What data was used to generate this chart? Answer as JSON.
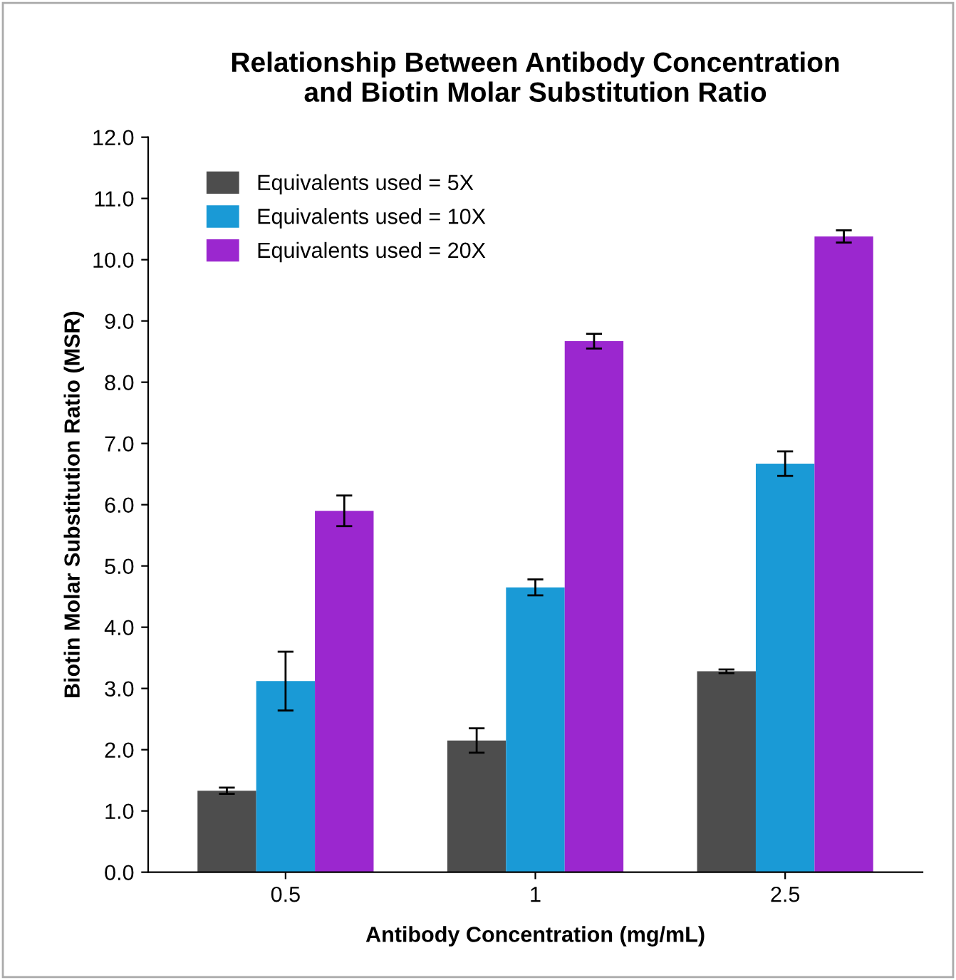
{
  "chart_data": {
    "type": "bar",
    "title": "Relationship Between Antibody Concentration\nand Biotin Molar Substitution Ratio",
    "xlabel": "Antibody Concentration (mg/mL)",
    "ylabel": "Biotin Molar Substitution Ratio (MSR)",
    "categories": [
      "0.5",
      "1",
      "2.5"
    ],
    "series": [
      {
        "name": "Equivalents used = 5X",
        "color": "#4d4d4d",
        "values": [
          1.33,
          2.15,
          3.28
        ],
        "errors": [
          0.05,
          0.2,
          0.03
        ]
      },
      {
        "name": "Equivalents used = 10X",
        "color": "#1a9ad6",
        "values": [
          3.12,
          4.65,
          6.67
        ],
        "errors": [
          0.48,
          0.13,
          0.2
        ]
      },
      {
        "name": "Equivalents used = 20X",
        "color": "#9b27cf",
        "values": [
          5.9,
          8.67,
          10.38
        ],
        "errors": [
          0.25,
          0.12,
          0.1
        ]
      }
    ],
    "ylim": [
      0,
      12
    ],
    "yticks": [
      {
        "value": 0,
        "label": "0.0"
      },
      {
        "value": 1,
        "label": "1.0"
      },
      {
        "value": 2,
        "label": "2.0"
      },
      {
        "value": 3,
        "label": "3.0"
      },
      {
        "value": 4,
        "label": "4.0"
      },
      {
        "value": 5,
        "label": "5.0"
      },
      {
        "value": 6,
        "label": "6.0"
      },
      {
        "value": 7,
        "label": "7.0"
      },
      {
        "value": 8,
        "label": "8.0"
      },
      {
        "value": 9,
        "label": "9.0"
      },
      {
        "value": 10,
        "label": "10.0"
      },
      {
        "value": 11,
        "label": "11.0"
      },
      {
        "value": 12,
        "label": "12.0"
      }
    ],
    "grid": false,
    "legend": "top left"
  }
}
